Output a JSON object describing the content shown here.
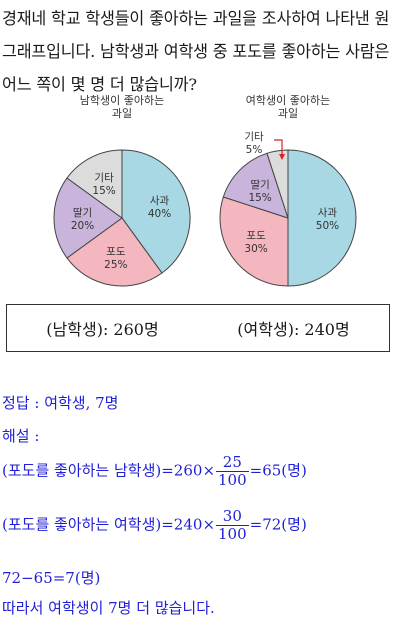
{
  "question": "경재네 학교 학생들이 좋아하는 과일을 조사하여 나타낸 원그래프입니다. 남학생과 여학생 중 포도를 좋아하는 사람은 어느 쪽이 몇 명 더 많습니까?",
  "chart_data": [
    {
      "type": "pie",
      "title": "남학생이 좋아하는 과일",
      "title_lines": [
        "남학생이 좋아하는",
        "과일"
      ],
      "slices": [
        {
          "label": "사과",
          "value": 40,
          "text": "40%",
          "color": "#a8d8e3"
        },
        {
          "label": "포도",
          "value": 25,
          "text": "25%",
          "color": "#f4b7c0"
        },
        {
          "label": "딸기",
          "value": 20,
          "text": "20%",
          "color": "#c9b5dc"
        },
        {
          "label": "기타",
          "value": 15,
          "text": "15%",
          "color": "#dcdcdc"
        }
      ]
    },
    {
      "type": "pie",
      "title": "여학생이 좋아하는 과일",
      "title_lines": [
        "여학생이 좋아하는",
        "과일"
      ],
      "slices": [
        {
          "label": "사과",
          "value": 50,
          "text": "50%",
          "color": "#a8d8e3"
        },
        {
          "label": "포도",
          "value": 30,
          "text": "30%",
          "color": "#f4b7c0"
        },
        {
          "label": "딸기",
          "value": 15,
          "text": "15%",
          "color": "#c9b5dc"
        },
        {
          "label": "기타",
          "value": 5,
          "text": "5%",
          "color": "#dcdcdc"
        }
      ]
    }
  ],
  "info": {
    "boys": "(남학생): 260명",
    "girls": "(여학생): 240명"
  },
  "solution": {
    "answer": "정답 : 여학생, 7명",
    "heading": "해설 :",
    "boys_prefix": "(포도를 좋아하는 남학생)=260×",
    "boys_num": "25",
    "boys_den": "100",
    "boys_result": "=65(명)",
    "girls_prefix": "(포도를 좋아하는 여학생)=240×",
    "girls_num": "30",
    "girls_den": "100",
    "girls_result": "=72(명)",
    "diff": "72−65=7(명)",
    "conclusion": "따라서 여학생이 7명 더 많습니다."
  }
}
